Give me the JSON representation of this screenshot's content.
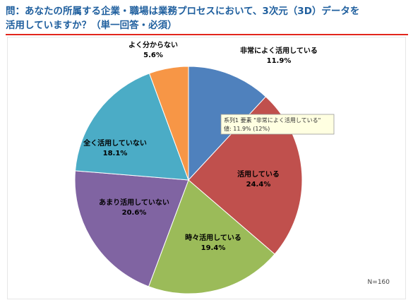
{
  "title_line1": "問：あなたの所属する企業・職場は業務プロセスにおいて、3次元（3D）データを",
  "title_line2": "活用していますか？（単一回答・必須）",
  "colors": {
    "title": "#1f5f9e",
    "rule": "#e2261d"
  },
  "chart_data": {
    "type": "pie",
    "categories": [
      "非常によく活用している",
      "活用している",
      "時々活用している",
      "あまり活用していない",
      "全く活用していない",
      "よく分からない"
    ],
    "values": [
      11.9,
      24.4,
      19.4,
      20.6,
      18.1,
      5.6
    ],
    "value_labels": [
      "11.9%",
      "24.4%",
      "19.4%",
      "20.6%",
      "18.1%",
      "5.6%"
    ],
    "colors": [
      "#4f81bd",
      "#c0504d",
      "#9bbb59",
      "#8064a2",
      "#4bacc6",
      "#f79646"
    ],
    "start": "12 o'clock",
    "direction": "clockwise",
    "n_label": "N=160",
    "tooltip": {
      "line1": "系列1 要素 \"非常によく活用している\"",
      "line2": "値: 11.9% (12%)"
    }
  }
}
